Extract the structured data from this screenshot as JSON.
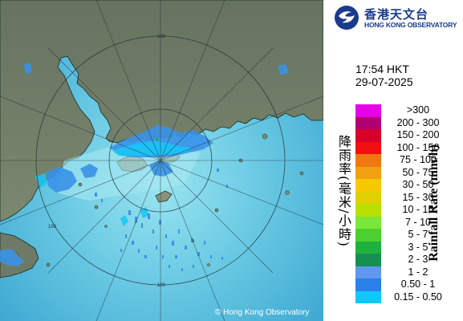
{
  "logo": {
    "name_cn": "香港天文台",
    "name_en": "HONG KONG OBSERVATORY",
    "icon": "hko-swirl-logo"
  },
  "timestamp": {
    "time": "17:54 HKT",
    "date": "29-07-2025"
  },
  "axis_label_cn": "降雨率(毫米/小時)",
  "axis_label_en": "Rainfall Rate (mm/h)",
  "legend": [
    {
      "label": ">300",
      "color": "#e800e8"
    },
    {
      "label": "200 - 300",
      "color": "#b00070"
    },
    {
      "label": "150 - 200",
      "color": "#d8002a"
    },
    {
      "label": "100 - 150",
      "color": "#f01010"
    },
    {
      "label": "75 - 100",
      "color": "#f07810"
    },
    {
      "label": "50 - 75",
      "color": "#f0a010"
    },
    {
      "label": "30 - 50",
      "color": "#f8c800"
    },
    {
      "label": "15 - 30",
      "color": "#e0d000"
    },
    {
      "label": "10 - 15",
      "color": "#b8e000"
    },
    {
      "label": "7 - 10",
      "color": "#7ae83a"
    },
    {
      "label": "5 - 7",
      "color": "#4cd030"
    },
    {
      "label": "3 - 5",
      "color": "#20b040"
    },
    {
      "label": "2 - 3",
      "color": "#159050"
    },
    {
      "label": "1 - 2",
      "color": "#6098f0"
    },
    {
      "label": "0.50 - 1",
      "color": "#2880e8"
    },
    {
      "label": "0.15 - 0.50",
      "color": "#10c8f8"
    }
  ],
  "range_rings_km": [
    64,
    128
  ],
  "ring_labels": {
    "top": "100",
    "left": "100",
    "bottom": "100"
  },
  "copyright": "© Hong Kong Observatory",
  "map_colors": {
    "sea": "#5ec3e0",
    "sea_near": "#8fe0ee",
    "land": "#6b7a64",
    "land_light": "#8a947a"
  }
}
